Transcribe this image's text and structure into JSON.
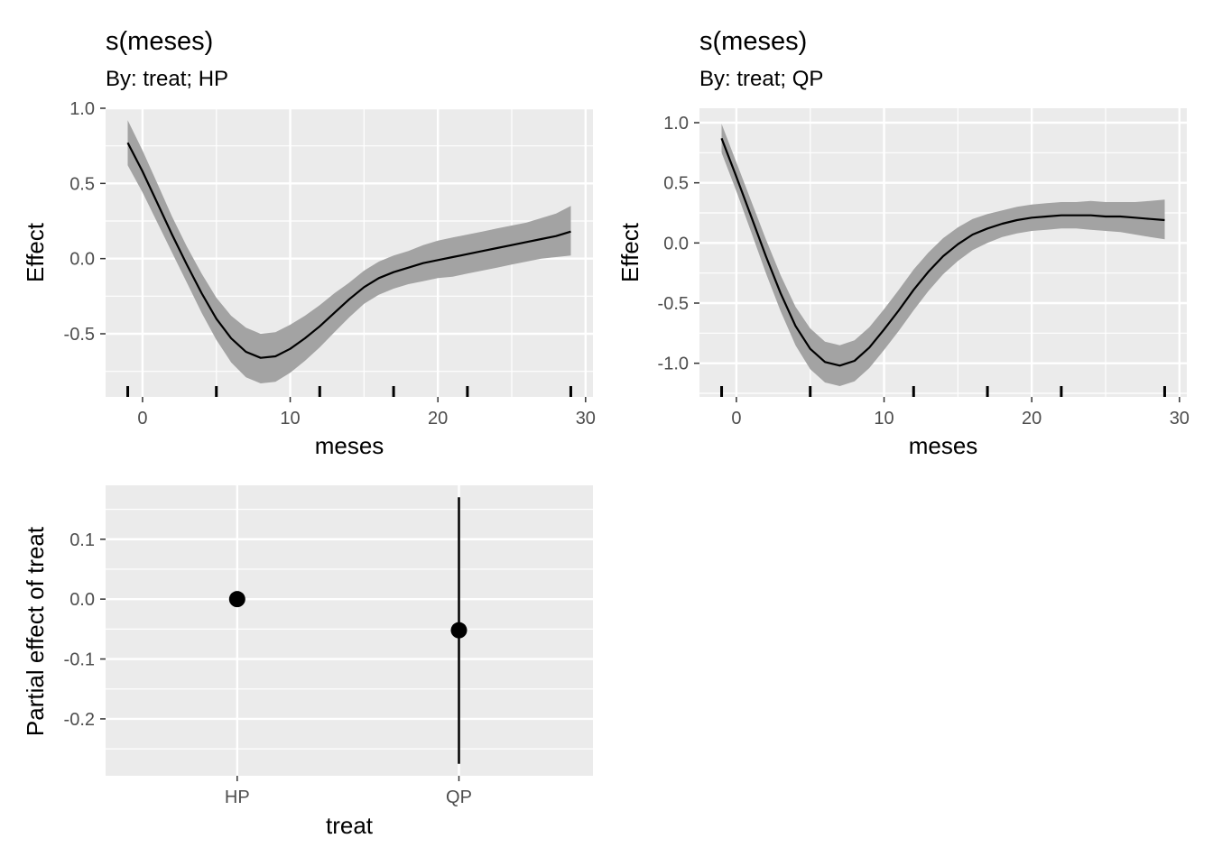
{
  "chart_data": [
    {
      "type": "line",
      "title": "s(meses)",
      "subtitle": "By: treat; HP",
      "xlabel": "meses",
      "ylabel": "Effect",
      "xlim": [
        -2.5,
        30.5
      ],
      "ylim": [
        -0.92,
        1.0
      ],
      "x_ticks": [
        0,
        10,
        20,
        30
      ],
      "x_tick_labels": [
        "0",
        "10",
        "20",
        "30"
      ],
      "y_ticks": [
        -0.5,
        0.0,
        0.5,
        1.0
      ],
      "y_tick_labels": [
        "-0.5",
        "0.0",
        "0.5",
        "1.0"
      ],
      "grid": true,
      "x": [
        -1,
        0,
        1,
        2,
        3,
        4,
        5,
        6,
        7,
        8,
        9,
        10,
        11,
        12,
        13,
        14,
        15,
        16,
        17,
        18,
        19,
        20,
        21,
        22,
        23,
        24,
        25,
        26,
        27,
        28,
        29
      ],
      "fit": [
        0.77,
        0.58,
        0.37,
        0.16,
        -0.04,
        -0.23,
        -0.4,
        -0.53,
        -0.62,
        -0.66,
        -0.65,
        -0.6,
        -0.53,
        -0.45,
        -0.36,
        -0.27,
        -0.19,
        -0.13,
        -0.09,
        -0.06,
        -0.03,
        -0.01,
        0.01,
        0.03,
        0.05,
        0.07,
        0.09,
        0.11,
        0.13,
        0.15,
        0.18
      ],
      "lower": [
        0.62,
        0.44,
        0.24,
        0.04,
        -0.16,
        -0.36,
        -0.54,
        -0.69,
        -0.79,
        -0.83,
        -0.82,
        -0.76,
        -0.68,
        -0.59,
        -0.49,
        -0.39,
        -0.3,
        -0.24,
        -0.2,
        -0.17,
        -0.15,
        -0.13,
        -0.12,
        -0.1,
        -0.08,
        -0.06,
        -0.04,
        -0.02,
        0.0,
        0.01,
        0.02
      ],
      "upper": [
        0.92,
        0.72,
        0.5,
        0.28,
        0.08,
        -0.1,
        -0.26,
        -0.38,
        -0.46,
        -0.5,
        -0.49,
        -0.44,
        -0.38,
        -0.31,
        -0.23,
        -0.16,
        -0.08,
        -0.02,
        0.02,
        0.05,
        0.09,
        0.12,
        0.14,
        0.16,
        0.18,
        0.2,
        0.22,
        0.24,
        0.27,
        0.3,
        0.35
      ],
      "rug": [
        -1,
        5,
        12,
        17,
        22,
        29
      ]
    },
    {
      "type": "line",
      "title": "s(meses)",
      "subtitle": "By: treat; QP",
      "xlabel": "meses",
      "ylabel": "Effect",
      "xlim": [
        -2.5,
        30.5
      ],
      "ylim": [
        -1.28,
        1.12
      ],
      "x_ticks": [
        0,
        10,
        20,
        30
      ],
      "x_tick_labels": [
        "0",
        "10",
        "20",
        "30"
      ],
      "y_ticks": [
        -1.0,
        -0.5,
        0.0,
        0.5,
        1.0
      ],
      "y_tick_labels": [
        "-1.0",
        "-0.5",
        "0.0",
        "0.5",
        "1.0"
      ],
      "grid": true,
      "x": [
        -1,
        0,
        1,
        2,
        3,
        4,
        5,
        6,
        7,
        8,
        9,
        10,
        11,
        12,
        13,
        14,
        15,
        16,
        17,
        18,
        19,
        20,
        21,
        22,
        23,
        24,
        25,
        26,
        27,
        28,
        29
      ],
      "fit": [
        0.87,
        0.55,
        0.22,
        -0.11,
        -0.42,
        -0.69,
        -0.88,
        -0.99,
        -1.02,
        -0.98,
        -0.87,
        -0.72,
        -0.56,
        -0.39,
        -0.24,
        -0.11,
        -0.01,
        0.07,
        0.12,
        0.16,
        0.19,
        0.21,
        0.22,
        0.23,
        0.23,
        0.23,
        0.22,
        0.22,
        0.21,
        0.2,
        0.19
      ],
      "lower": [
        0.75,
        0.43,
        0.09,
        -0.25,
        -0.57,
        -0.85,
        -1.05,
        -1.16,
        -1.19,
        -1.15,
        -1.04,
        -0.89,
        -0.73,
        -0.56,
        -0.4,
        -0.26,
        -0.15,
        -0.06,
        0.0,
        0.05,
        0.08,
        0.1,
        0.11,
        0.12,
        0.12,
        0.11,
        0.1,
        0.09,
        0.07,
        0.05,
        0.03
      ],
      "upper": [
        0.99,
        0.67,
        0.35,
        0.03,
        -0.27,
        -0.53,
        -0.71,
        -0.82,
        -0.85,
        -0.81,
        -0.7,
        -0.55,
        -0.39,
        -0.22,
        -0.08,
        0.04,
        0.13,
        0.2,
        0.24,
        0.27,
        0.3,
        0.32,
        0.33,
        0.34,
        0.34,
        0.35,
        0.34,
        0.34,
        0.34,
        0.35,
        0.36
      ],
      "rug": [
        -1,
        5,
        12,
        17,
        22,
        29
      ]
    },
    {
      "type": "scatter",
      "title": "",
      "xlabel": "treat",
      "ylabel": "Partial effect of treat",
      "categories": [
        "HP",
        "QP"
      ],
      "ylim": [
        -0.295,
        0.19
      ],
      "y_ticks": [
        -0.2,
        -0.1,
        0.0,
        0.1
      ],
      "y_tick_labels": [
        "-0.2",
        "-0.1",
        "0.0",
        "0.1"
      ],
      "grid": true,
      "values": [
        0.0,
        -0.052
      ],
      "lower": [
        0.0,
        -0.275
      ],
      "upper": [
        0.0,
        0.17
      ]
    }
  ]
}
